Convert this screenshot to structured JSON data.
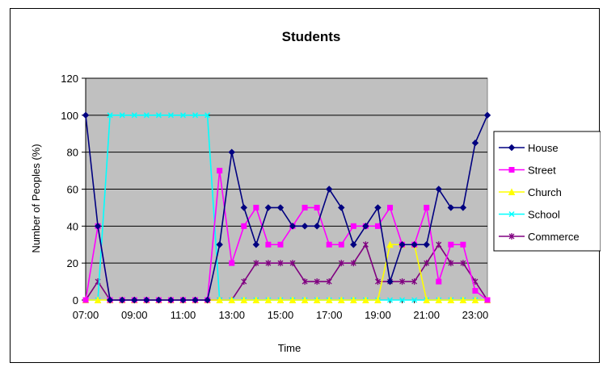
{
  "chart_data": {
    "type": "line",
    "title": "Students",
    "xlabel": "Time",
    "ylabel": "Number of Peoples (%)",
    "ylim": [
      0,
      120
    ],
    "yticks": [
      0,
      20,
      40,
      60,
      80,
      100,
      120
    ],
    "xticks": [
      "07:00",
      "09:00",
      "11:00",
      "13:00",
      "15:00",
      "17:00",
      "19:00",
      "21:00",
      "23:00"
    ],
    "x": [
      "07:00",
      "07:30",
      "08:00",
      "08:30",
      "09:00",
      "09:30",
      "10:00",
      "10:30",
      "11:00",
      "11:30",
      "12:00",
      "12:30",
      "13:00",
      "13:30",
      "14:00",
      "14:30",
      "15:00",
      "15:30",
      "16:00",
      "16:30",
      "17:00",
      "17:30",
      "18:00",
      "18:30",
      "19:00",
      "19:30",
      "20:00",
      "20:30",
      "21:00",
      "21:30",
      "22:00",
      "22:30",
      "23:00",
      "23:30"
    ],
    "grid": true,
    "legend_position": "right",
    "plot_background": "#c0c0c0",
    "series": [
      {
        "name": "House",
        "color": "#000080",
        "marker": "diamond",
        "values": [
          100,
          40,
          0,
          0,
          0,
          0,
          0,
          0,
          0,
          0,
          0,
          30,
          80,
          50,
          30,
          50,
          50,
          40,
          40,
          40,
          60,
          50,
          30,
          40,
          50,
          10,
          30,
          30,
          30,
          60,
          50,
          50,
          85,
          100
        ]
      },
      {
        "name": "Street",
        "color": "#ff00ff",
        "marker": "square",
        "values": [
          0,
          40,
          0,
          0,
          0,
          0,
          0,
          0,
          0,
          0,
          0,
          70,
          20,
          40,
          50,
          30,
          30,
          40,
          50,
          50,
          30,
          30,
          40,
          40,
          40,
          50,
          30,
          30,
          50,
          10,
          30,
          30,
          5,
          0
        ]
      },
      {
        "name": "Church",
        "color": "#ffff00",
        "marker": "triangle",
        "values": [
          0,
          0,
          0,
          0,
          0,
          0,
          0,
          0,
          0,
          0,
          0,
          0,
          0,
          0,
          0,
          0,
          0,
          0,
          0,
          0,
          0,
          0,
          0,
          0,
          0,
          30,
          30,
          30,
          0,
          0,
          0,
          0,
          0,
          0
        ]
      },
      {
        "name": "School",
        "color": "#00ffff",
        "marker": "x",
        "values": [
          0,
          0,
          100,
          100,
          100,
          100,
          100,
          100,
          100,
          100,
          100,
          0,
          0,
          0,
          0,
          0,
          0,
          0,
          0,
          0,
          0,
          0,
          0,
          0,
          0,
          0,
          0,
          0,
          0,
          0,
          0,
          0,
          0,
          0
        ]
      },
      {
        "name": "Commerce",
        "color": "#800080",
        "marker": "star",
        "values": [
          0,
          10,
          0,
          0,
          0,
          0,
          0,
          0,
          0,
          0,
          0,
          0,
          0,
          10,
          20,
          20,
          20,
          20,
          10,
          10,
          10,
          20,
          20,
          30,
          10,
          10,
          10,
          10,
          20,
          30,
          20,
          20,
          10,
          0
        ]
      }
    ]
  }
}
